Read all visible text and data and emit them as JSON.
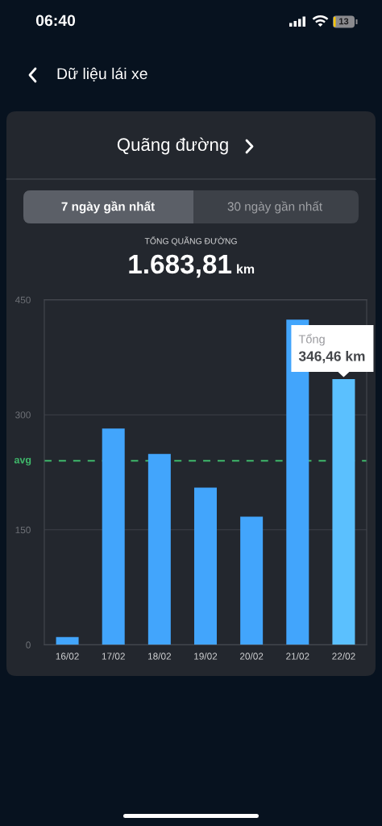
{
  "chart_data": {
    "type": "bar",
    "title": "Quãng đường",
    "categories": [
      "16/02",
      "17/02",
      "18/02",
      "19/02",
      "20/02",
      "21/02",
      "22/02"
    ],
    "values": [
      10,
      282,
      249,
      205,
      167,
      424,
      346.46
    ],
    "colors": [
      "#42a5fc",
      "#42a5fc",
      "#42a5fc",
      "#42a5fc",
      "#42a5fc",
      "#42a5fc",
      "#5bc0fe"
    ],
    "value_labels": [
      null,
      null,
      null,
      null,
      null,
      null,
      "346,46 km"
    ],
    "ylim": [
      0,
      450
    ],
    "yticks": [
      0,
      150,
      300,
      450
    ],
    "grid": "y",
    "ref_lines": [
      {
        "axis": "y",
        "value": 240,
        "label": "avg",
        "color": "#3fb96b",
        "line_style": "dashed"
      }
    ],
    "annotations": [
      "06:40",
      "13",
      "Dữ liệu lái xe",
      "7 ngày gần nhất",
      "30 ngày gần nhất",
      "TỔNG QUÃNG ĐƯỜNG",
      "1.683,81 km",
      "Tổng"
    ]
  }
}
